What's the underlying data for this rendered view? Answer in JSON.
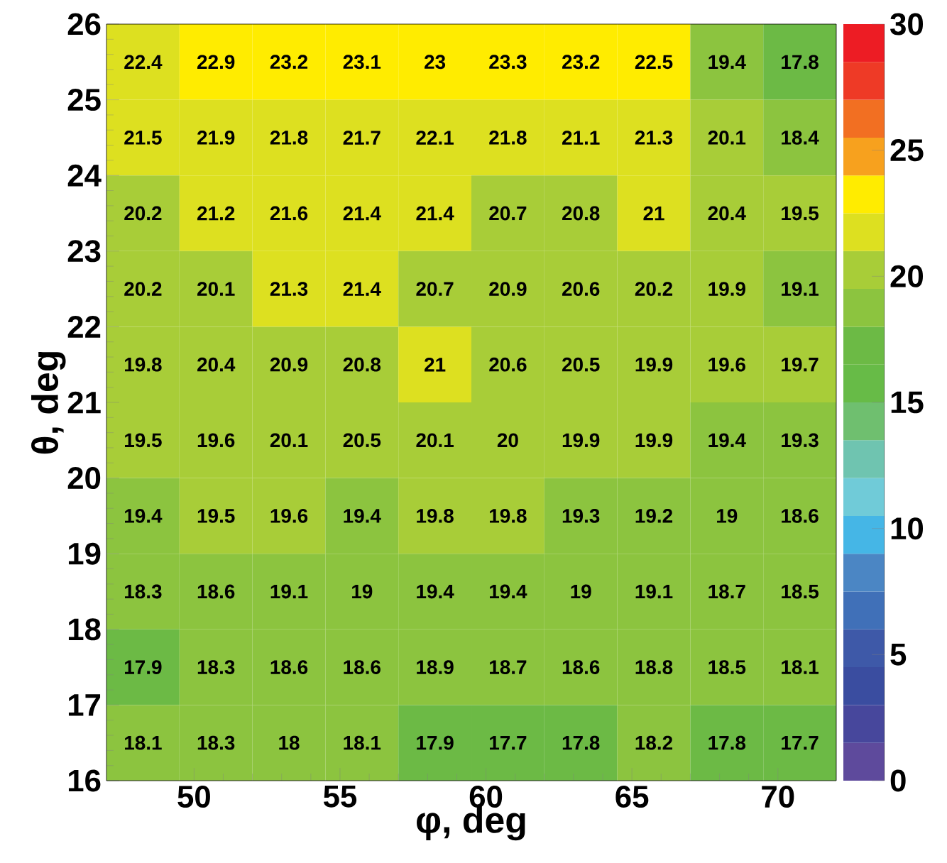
{
  "chart_data": {
    "type": "heatmap",
    "xlabel": "φ, deg",
    "ylabel": "θ, deg",
    "xlim": [
      47,
      72
    ],
    "xticks": [
      50,
      55,
      60,
      65,
      70
    ],
    "ylim": [
      16,
      26
    ],
    "yticks": [
      16,
      17,
      18,
      19,
      20,
      21,
      22,
      23,
      24,
      25,
      26
    ],
    "cells": [
      [
        22.4,
        22.9,
        23.2,
        23.1,
        23,
        23.3,
        23.2,
        22.5,
        19.4,
        17.8
      ],
      [
        21.5,
        21.9,
        21.8,
        21.7,
        22.1,
        21.8,
        21.1,
        21.3,
        20.1,
        18.4
      ],
      [
        20.2,
        21.2,
        21.6,
        21.4,
        21.4,
        20.7,
        20.8,
        21,
        20.4,
        19.5
      ],
      [
        20.2,
        20.1,
        21.3,
        21.4,
        20.7,
        20.9,
        20.6,
        20.2,
        19.9,
        19.1
      ],
      [
        19.8,
        20.4,
        20.9,
        20.8,
        21,
        20.6,
        20.5,
        19.9,
        19.6,
        19.7
      ],
      [
        19.5,
        19.6,
        20.1,
        20.5,
        20.1,
        20,
        19.9,
        19.9,
        19.4,
        19.3
      ],
      [
        19.4,
        19.5,
        19.6,
        19.4,
        19.8,
        19.8,
        19.3,
        19.2,
        19,
        18.6
      ],
      [
        18.3,
        18.6,
        19.1,
        19,
        19.4,
        19.4,
        19,
        19.1,
        18.7,
        18.5
      ],
      [
        17.9,
        18.3,
        18.6,
        18.6,
        18.9,
        18.7,
        18.6,
        18.8,
        18.5,
        18.1
      ],
      [
        18.1,
        18.3,
        18,
        18.1,
        17.9,
        17.7,
        17.8,
        18.2,
        17.8,
        17.7
      ]
    ],
    "data_labels": true,
    "clim": [
      0,
      30
    ],
    "cticks": [
      0,
      5,
      10,
      15,
      20,
      25,
      30
    ]
  }
}
